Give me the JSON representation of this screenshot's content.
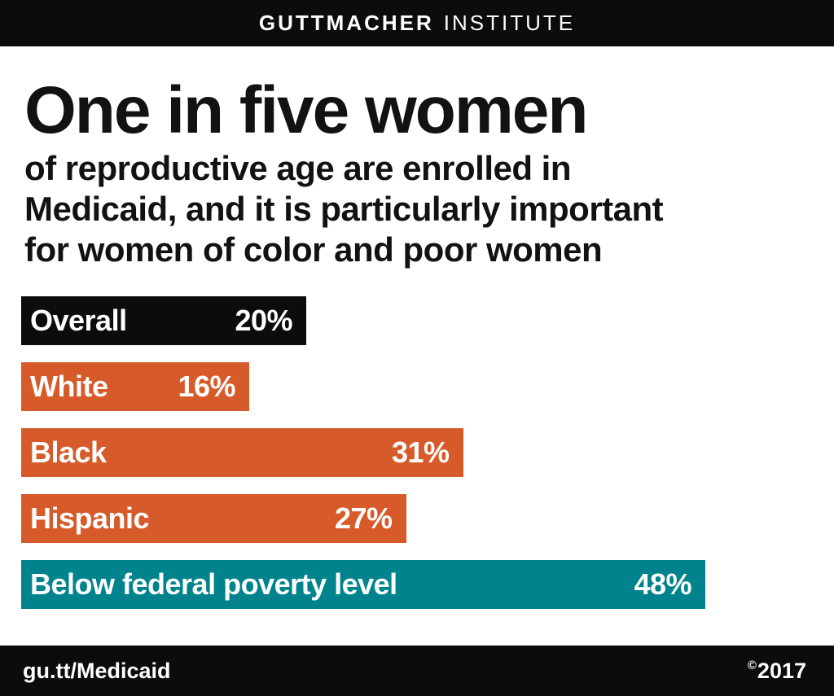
{
  "header": {
    "brand_primary": "GUTTMACHER",
    "brand_secondary": "INSTITUTE"
  },
  "main": {
    "title": "One in five women",
    "subtitle_lines": [
      "of reproductive age are enrolled in",
      "Medicaid, and it is particularly important",
      "for women of color and poor women"
    ]
  },
  "chart_data": {
    "type": "bar",
    "orientation": "horizontal",
    "title": "One in five women of reproductive age are enrolled in Medicaid, and it is particularly important for women of color and poor women",
    "categories": [
      "Overall",
      "White",
      "Black",
      "Hispanic",
      "Below federal poverty level"
    ],
    "values": [
      20,
      16,
      31,
      27,
      48
    ],
    "value_labels": [
      "20%",
      "16%",
      "31%",
      "27%",
      "48%"
    ],
    "unit": "%",
    "xlim": [
      0,
      50
    ],
    "grid": false,
    "legend": false,
    "bar_colors": [
      "#0c0c0c",
      "#d75b2a",
      "#d75b2a",
      "#d75b2a",
      "#00838c"
    ]
  },
  "footer": {
    "link": "gu.tt/Medicaid",
    "copyright_symbol": "©",
    "copyright_year": "2017"
  },
  "colors": {
    "background": "#ffffff",
    "bar_black": "#0c0c0c",
    "bar_orange": "#d75b2a",
    "bar_teal": "#00838c",
    "text_dark": "#121212",
    "text_light": "#ffffff"
  }
}
